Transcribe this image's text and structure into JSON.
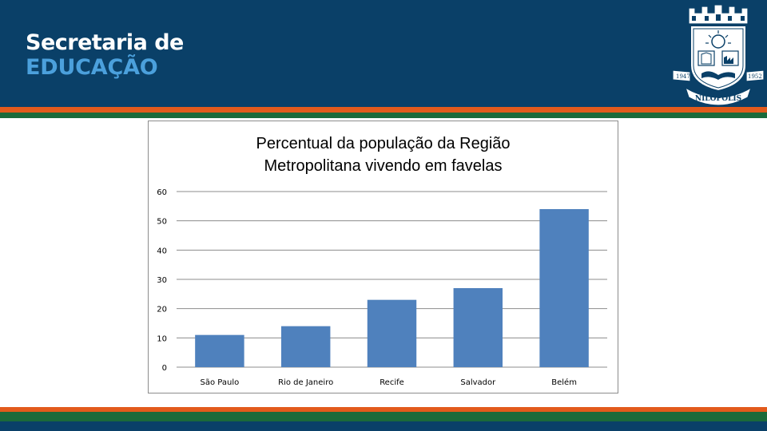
{
  "header": {
    "brand_line1": "Secretaria de",
    "brand_line2": "EDUCAÇÃO",
    "seal": {
      "text_top": "NILÓPOLIS",
      "year_left": "1947",
      "year_right": "1952"
    }
  },
  "colors": {
    "header_bg": "#0a4068",
    "brand_accent": "#4ba0dc",
    "stripe_orange": "#e25a1c",
    "stripe_green": "#1b6a3a",
    "bar": "#4f81bd"
  },
  "chart_data": {
    "type": "bar",
    "title_lines": [
      "Percentual da população da Região",
      "Metropolitana vivendo em favelas"
    ],
    "categories": [
      "São Paulo",
      "Rio de Janeiro",
      "Recife",
      "Salvador",
      "Belém"
    ],
    "values": [
      11,
      14,
      23,
      27,
      54
    ],
    "ylim": [
      0,
      60
    ],
    "yticks": [
      0,
      10,
      20,
      30,
      40,
      50,
      60
    ],
    "grid": true,
    "legend": "none"
  }
}
